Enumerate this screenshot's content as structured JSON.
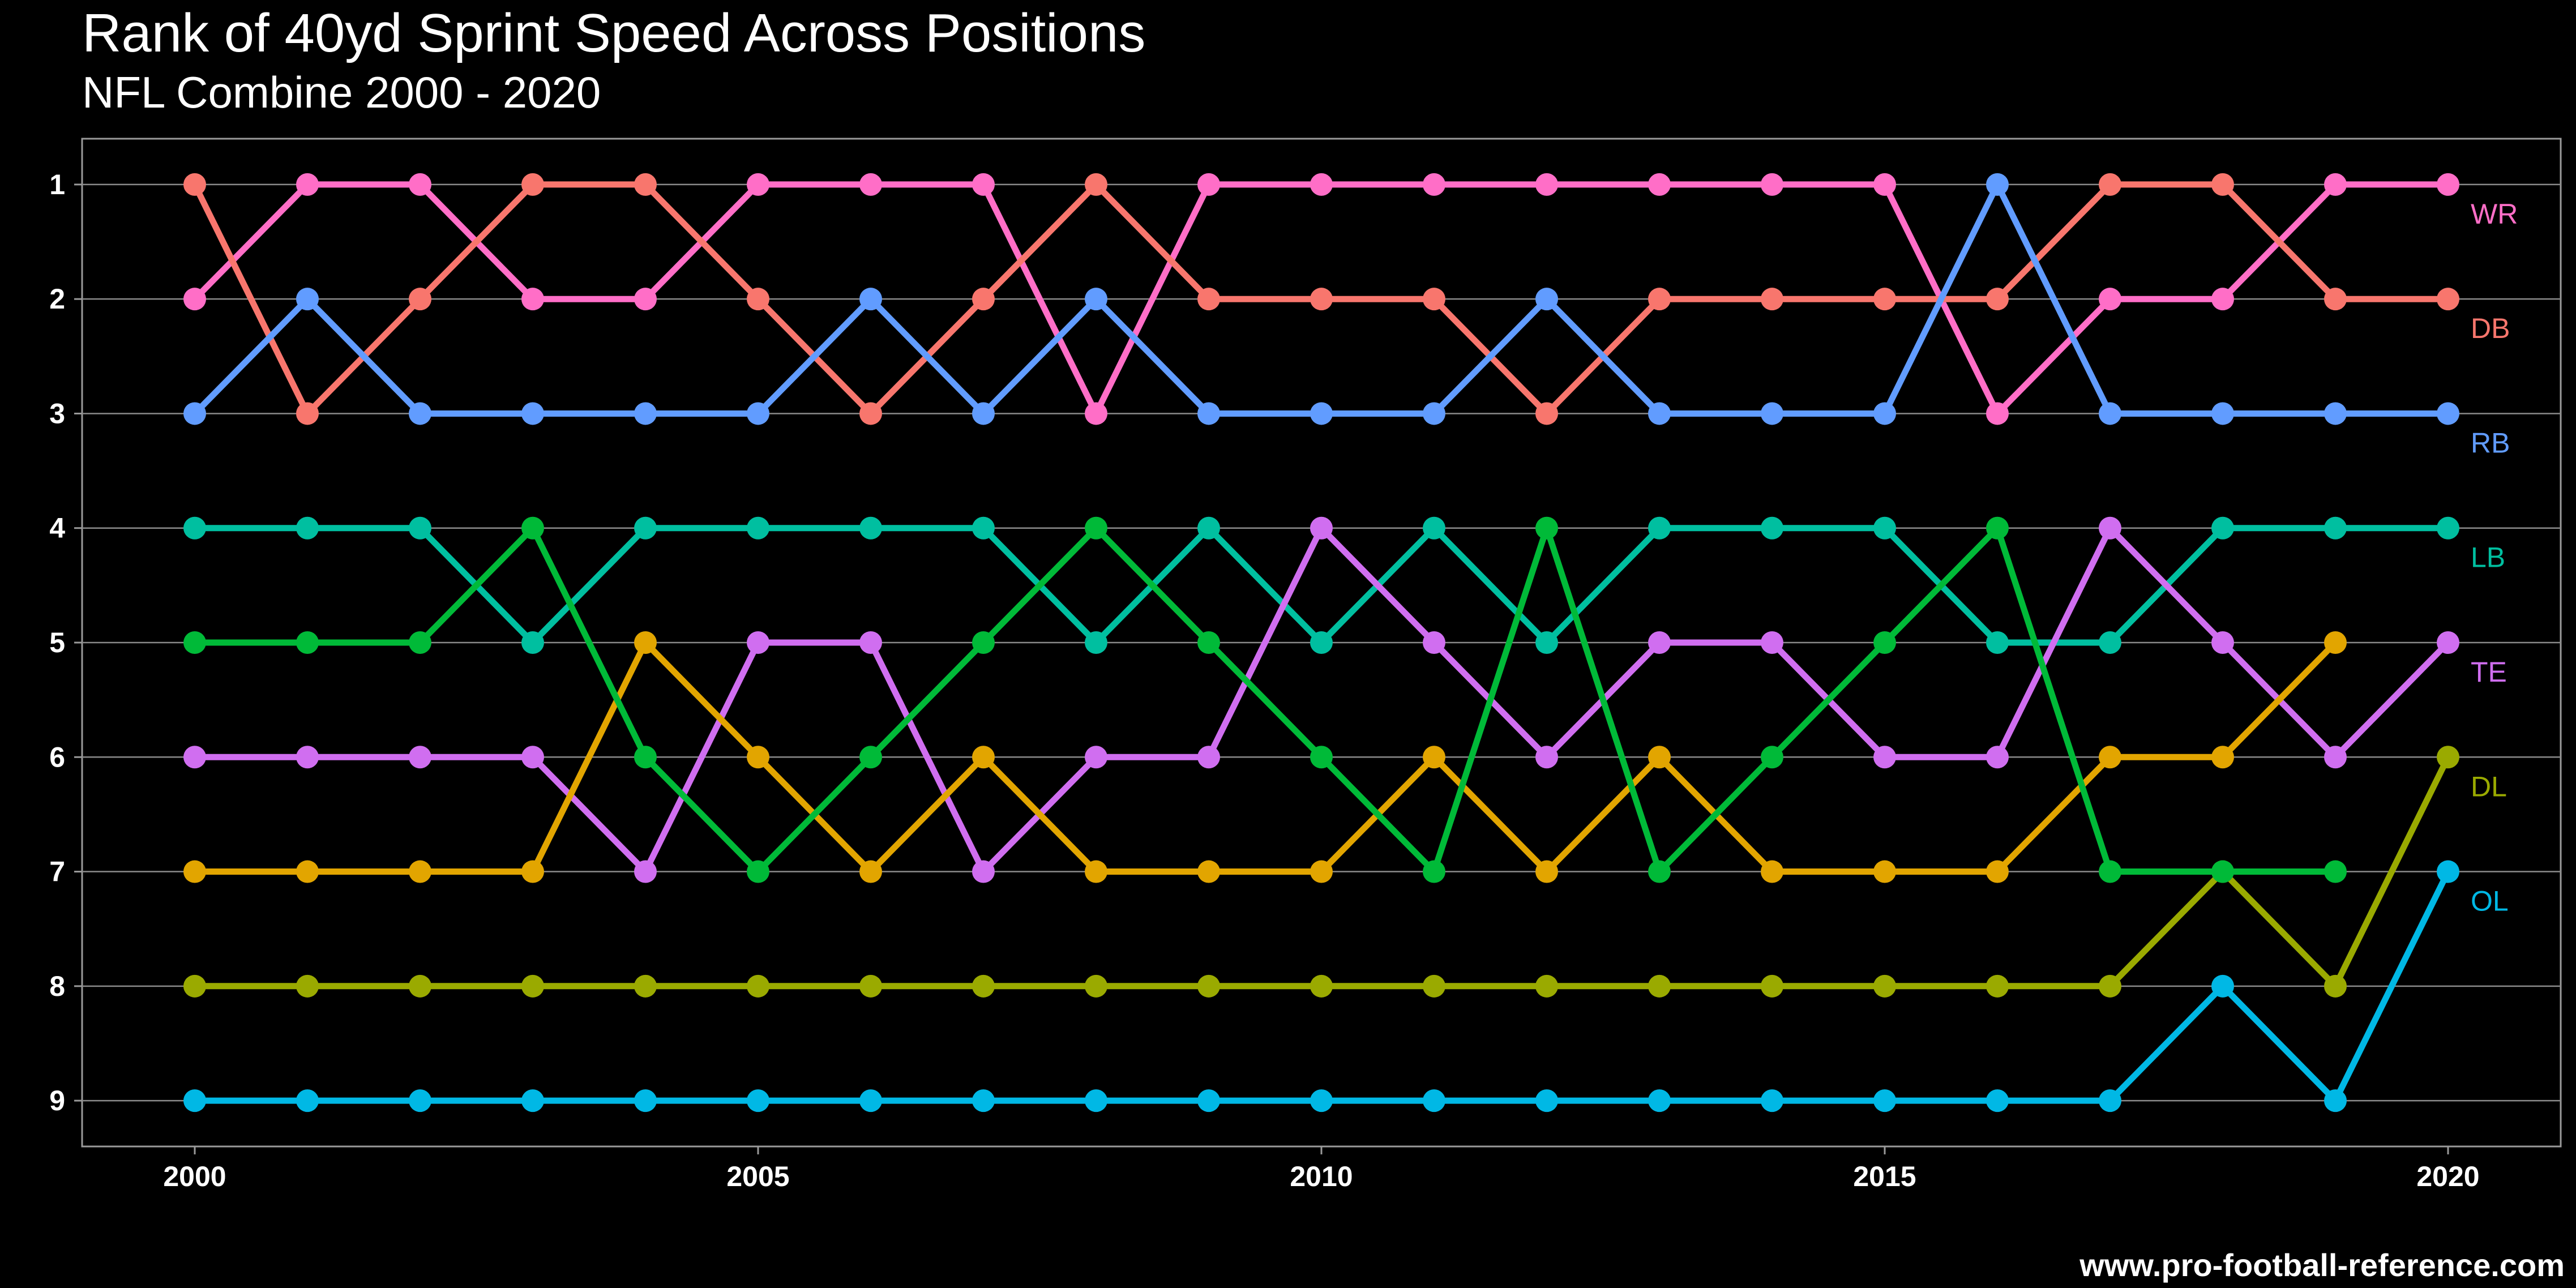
{
  "chart_data": {
    "type": "line",
    "title": "Rank of 40yd Sprint Speed Across Positions",
    "subtitle": "NFL Combine 2000 - 2020",
    "caption": "www.pro-football-reference.com",
    "xlabel": "",
    "ylabel": "",
    "x": [
      2000,
      2001,
      2002,
      2003,
      2004,
      2005,
      2006,
      2007,
      2008,
      2009,
      2010,
      2011,
      2012,
      2013,
      2014,
      2015,
      2016,
      2017,
      2018,
      2019,
      2020
    ],
    "x_ticks": [
      2000,
      2005,
      2010,
      2015,
      2020
    ],
    "y_ticks": [
      1,
      2,
      3,
      4,
      5,
      6,
      7,
      8,
      9
    ],
    "xlim": [
      1999,
      2021
    ],
    "ylim": [
      0.6,
      9.4
    ],
    "y_reversed": true,
    "grid": true,
    "legend": "direct labels at right end of lines",
    "series": [
      {
        "name": "WR",
        "color": "#FF6EC7",
        "values": [
          2,
          1,
          1,
          2,
          2,
          1,
          1,
          1,
          3,
          1,
          1,
          1,
          1,
          1,
          1,
          1,
          3,
          2,
          2,
          1,
          1
        ]
      },
      {
        "name": "DB",
        "color": "#F8766D",
        "values": [
          1,
          3,
          2,
          1,
          1,
          2,
          3,
          2,
          1,
          2,
          2,
          2,
          3,
          2,
          2,
          2,
          2,
          1,
          1,
          2,
          2
        ]
      },
      {
        "name": "RB",
        "color": "#619CFF",
        "values": [
          3,
          2,
          3,
          3,
          3,
          3,
          2,
          3,
          2,
          3,
          3,
          3,
          2,
          3,
          3,
          3,
          1,
          3,
          3,
          3,
          3
        ]
      },
      {
        "name": "LB",
        "color": "#00BFA0",
        "values": [
          4,
          4,
          4,
          5,
          4,
          4,
          4,
          4,
          5,
          4,
          5,
          4,
          5,
          4,
          4,
          4,
          5,
          5,
          4,
          4,
          4
        ]
      },
      {
        "name": "TE",
        "color": "#D06EF0",
        "values": [
          6,
          6,
          6,
          6,
          7,
          5,
          5,
          7,
          6,
          6,
          4,
          5,
          6,
          5,
          5,
          6,
          6,
          4,
          5,
          6,
          5
        ]
      },
      {
        "name": "DL",
        "color": "#9AAA00",
        "values": [
          8,
          8,
          8,
          8,
          8,
          8,
          8,
          8,
          8,
          8,
          8,
          8,
          8,
          8,
          8,
          8,
          8,
          8,
          7,
          8,
          6
        ]
      },
      {
        "name": "OL",
        "color": "#00B8E5",
        "values": [
          9,
          9,
          9,
          9,
          9,
          9,
          9,
          9,
          9,
          9,
          9,
          9,
          9,
          9,
          9,
          9,
          9,
          9,
          8,
          9,
          7
        ]
      },
      {
        "name": "",
        "color": "#E2A500",
        "values": [
          7,
          7,
          7,
          7,
          5,
          6,
          7,
          6,
          7,
          7,
          7,
          6,
          7,
          6,
          7,
          7,
          7,
          6,
          6,
          5,
          null
        ]
      },
      {
        "name": "",
        "color": "#00BA38",
        "values": [
          5,
          5,
          5,
          4,
          6,
          7,
          6,
          5,
          4,
          5,
          6,
          7,
          4,
          7,
          6,
          5,
          4,
          7,
          7,
          7,
          null
        ]
      }
    ]
  }
}
